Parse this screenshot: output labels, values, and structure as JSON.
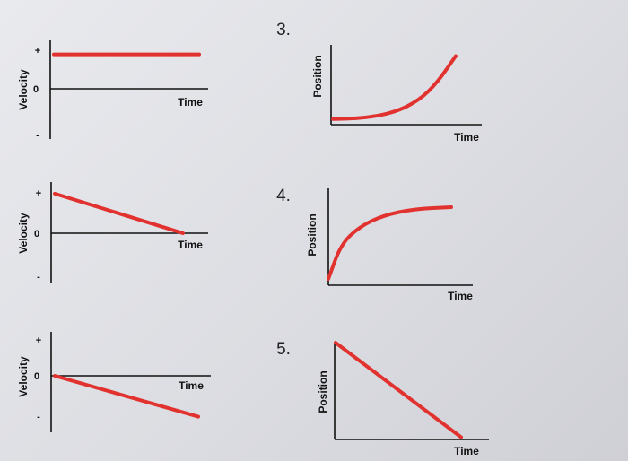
{
  "chart_data": [
    {
      "type": "line",
      "xlabel": "Time",
      "ylabel": "Velocity",
      "y_ticks": [
        "+",
        "0",
        "-"
      ],
      "series": [
        {
          "x": [
            0,
            1
          ],
          "y": [
            0.6,
            0.6
          ]
        }
      ]
    },
    {
      "type": "line",
      "xlabel": "Time",
      "ylabel": "Velocity",
      "y_ticks": [
        "+",
        "0",
        "-"
      ],
      "series": [
        {
          "x": [
            0,
            1
          ],
          "y": [
            0.9,
            0
          ]
        }
      ]
    },
    {
      "type": "line",
      "xlabel": "Time",
      "ylabel": "Velocity",
      "y_ticks": [
        "+",
        "0",
        "-"
      ],
      "series": [
        {
          "x": [
            0,
            1
          ],
          "y": [
            0,
            -0.95
          ]
        }
      ]
    },
    {
      "type": "line",
      "number": "3.",
      "xlabel": "Time",
      "ylabel": "Position",
      "series": [
        {
          "x": [
            0,
            0.25,
            0.5,
            0.7,
            0.85,
            1
          ],
          "y": [
            0.07,
            0.08,
            0.15,
            0.3,
            0.52,
            0.85
          ]
        }
      ]
    },
    {
      "type": "line",
      "number": "4.",
      "xlabel": "Time",
      "ylabel": "Position",
      "series": [
        {
          "x": [
            0,
            0.1,
            0.25,
            0.45,
            0.7,
            1
          ],
          "y": [
            0.07,
            0.45,
            0.65,
            0.78,
            0.85,
            0.87
          ]
        }
      ]
    },
    {
      "type": "line",
      "number": "5.",
      "xlabel": "Time",
      "ylabel": "Position",
      "series": [
        {
          "x": [
            0,
            1
          ],
          "y": [
            0.85,
            0.02
          ]
        }
      ]
    }
  ],
  "colors": {
    "line": "#e1322f",
    "axis": "#111111"
  }
}
